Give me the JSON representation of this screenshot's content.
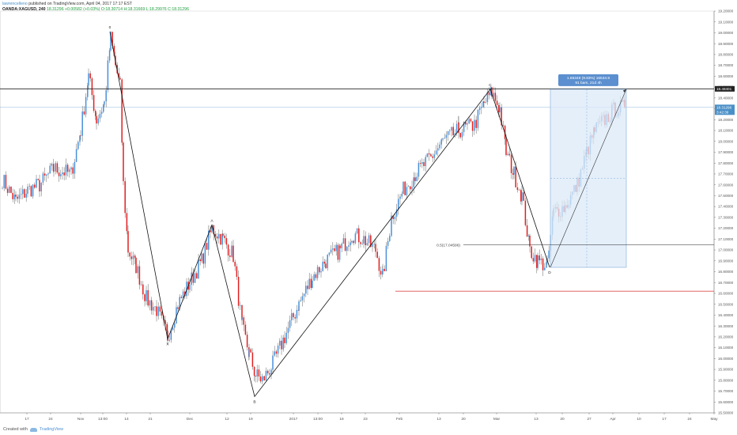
{
  "header": {
    "author": "lawrencelleno",
    "published": "published on TradingView.com, April 04, 2017 17:17 EST",
    "symbol": "OANDA:XAGUSD, 240",
    "last": "18.31296",
    "change": "+0.00582 (+0.03%)",
    "ohlc": "O:18.30714 H:18.31669 L:18.29976 C:18.31296"
  },
  "footer": {
    "created_with": "Created with",
    "brand": "TradingView",
    "logo_icon": "tradingview-logo-icon"
  },
  "chart_data": {
    "type": "candlestick",
    "symbol": "OANDA:XAGUSD",
    "interval": "240",
    "ylim": [
      15.5,
      19.2
    ],
    "y_ticks": [
      "19.20000",
      "19.10000",
      "19.00000",
      "18.90000",
      "18.80000",
      "18.70000",
      "18.60000",
      "18.50000",
      "18.40000",
      "18.30000",
      "18.20000",
      "18.10000",
      "18.00000",
      "17.90000",
      "17.80000",
      "17.70000",
      "17.60000",
      "17.50000",
      "17.40000",
      "17.30000",
      "17.20000",
      "17.10000",
      "17.00000",
      "16.90000",
      "16.80000",
      "16.70000",
      "16.60000",
      "16.50000",
      "16.40000",
      "16.30000",
      "16.20000",
      "16.10000",
      "16.00000",
      "15.90000",
      "15.80000",
      "15.70000",
      "15.60000",
      "15.50000"
    ],
    "x_ticks": [
      "17",
      "24",
      "Nov",
      "13:00",
      "14",
      "21",
      "Dec",
      "12",
      "19",
      "2017",
      "13:00",
      "16",
      "23",
      "Feb",
      "13",
      "20",
      "Mar",
      "13",
      "20",
      "27",
      "Apr",
      "10",
      "17",
      "24",
      "May"
    ],
    "price_levels": [
      {
        "label": "18.48401",
        "value": 18.48401,
        "color": "#222222"
      },
      {
        "label": "18.31296",
        "value": 18.31296,
        "color": "#4a90c8"
      }
    ],
    "last_time": "3:42:36",
    "support_line": {
      "value": 16.62,
      "color": "#e05050"
    },
    "fib_level": {
      "label": "0.5(17.04596)",
      "value": 17.04596
    },
    "pattern_points": [
      {
        "label": "0",
        "price": 19.01
      },
      {
        "label": "X",
        "price": 16.18
      },
      {
        "label": "A",
        "price": 17.23
      },
      {
        "label": "B",
        "price": 15.65
      },
      {
        "label": "C",
        "price": 18.48
      },
      {
        "label": "D",
        "price": 16.84
      }
    ],
    "measure_box": {
      "line1": "1.65349 (9.83%) 16534.9",
      "line2": "91 bars, 21d 4h",
      "low": 16.84,
      "high": 18.48
    }
  }
}
